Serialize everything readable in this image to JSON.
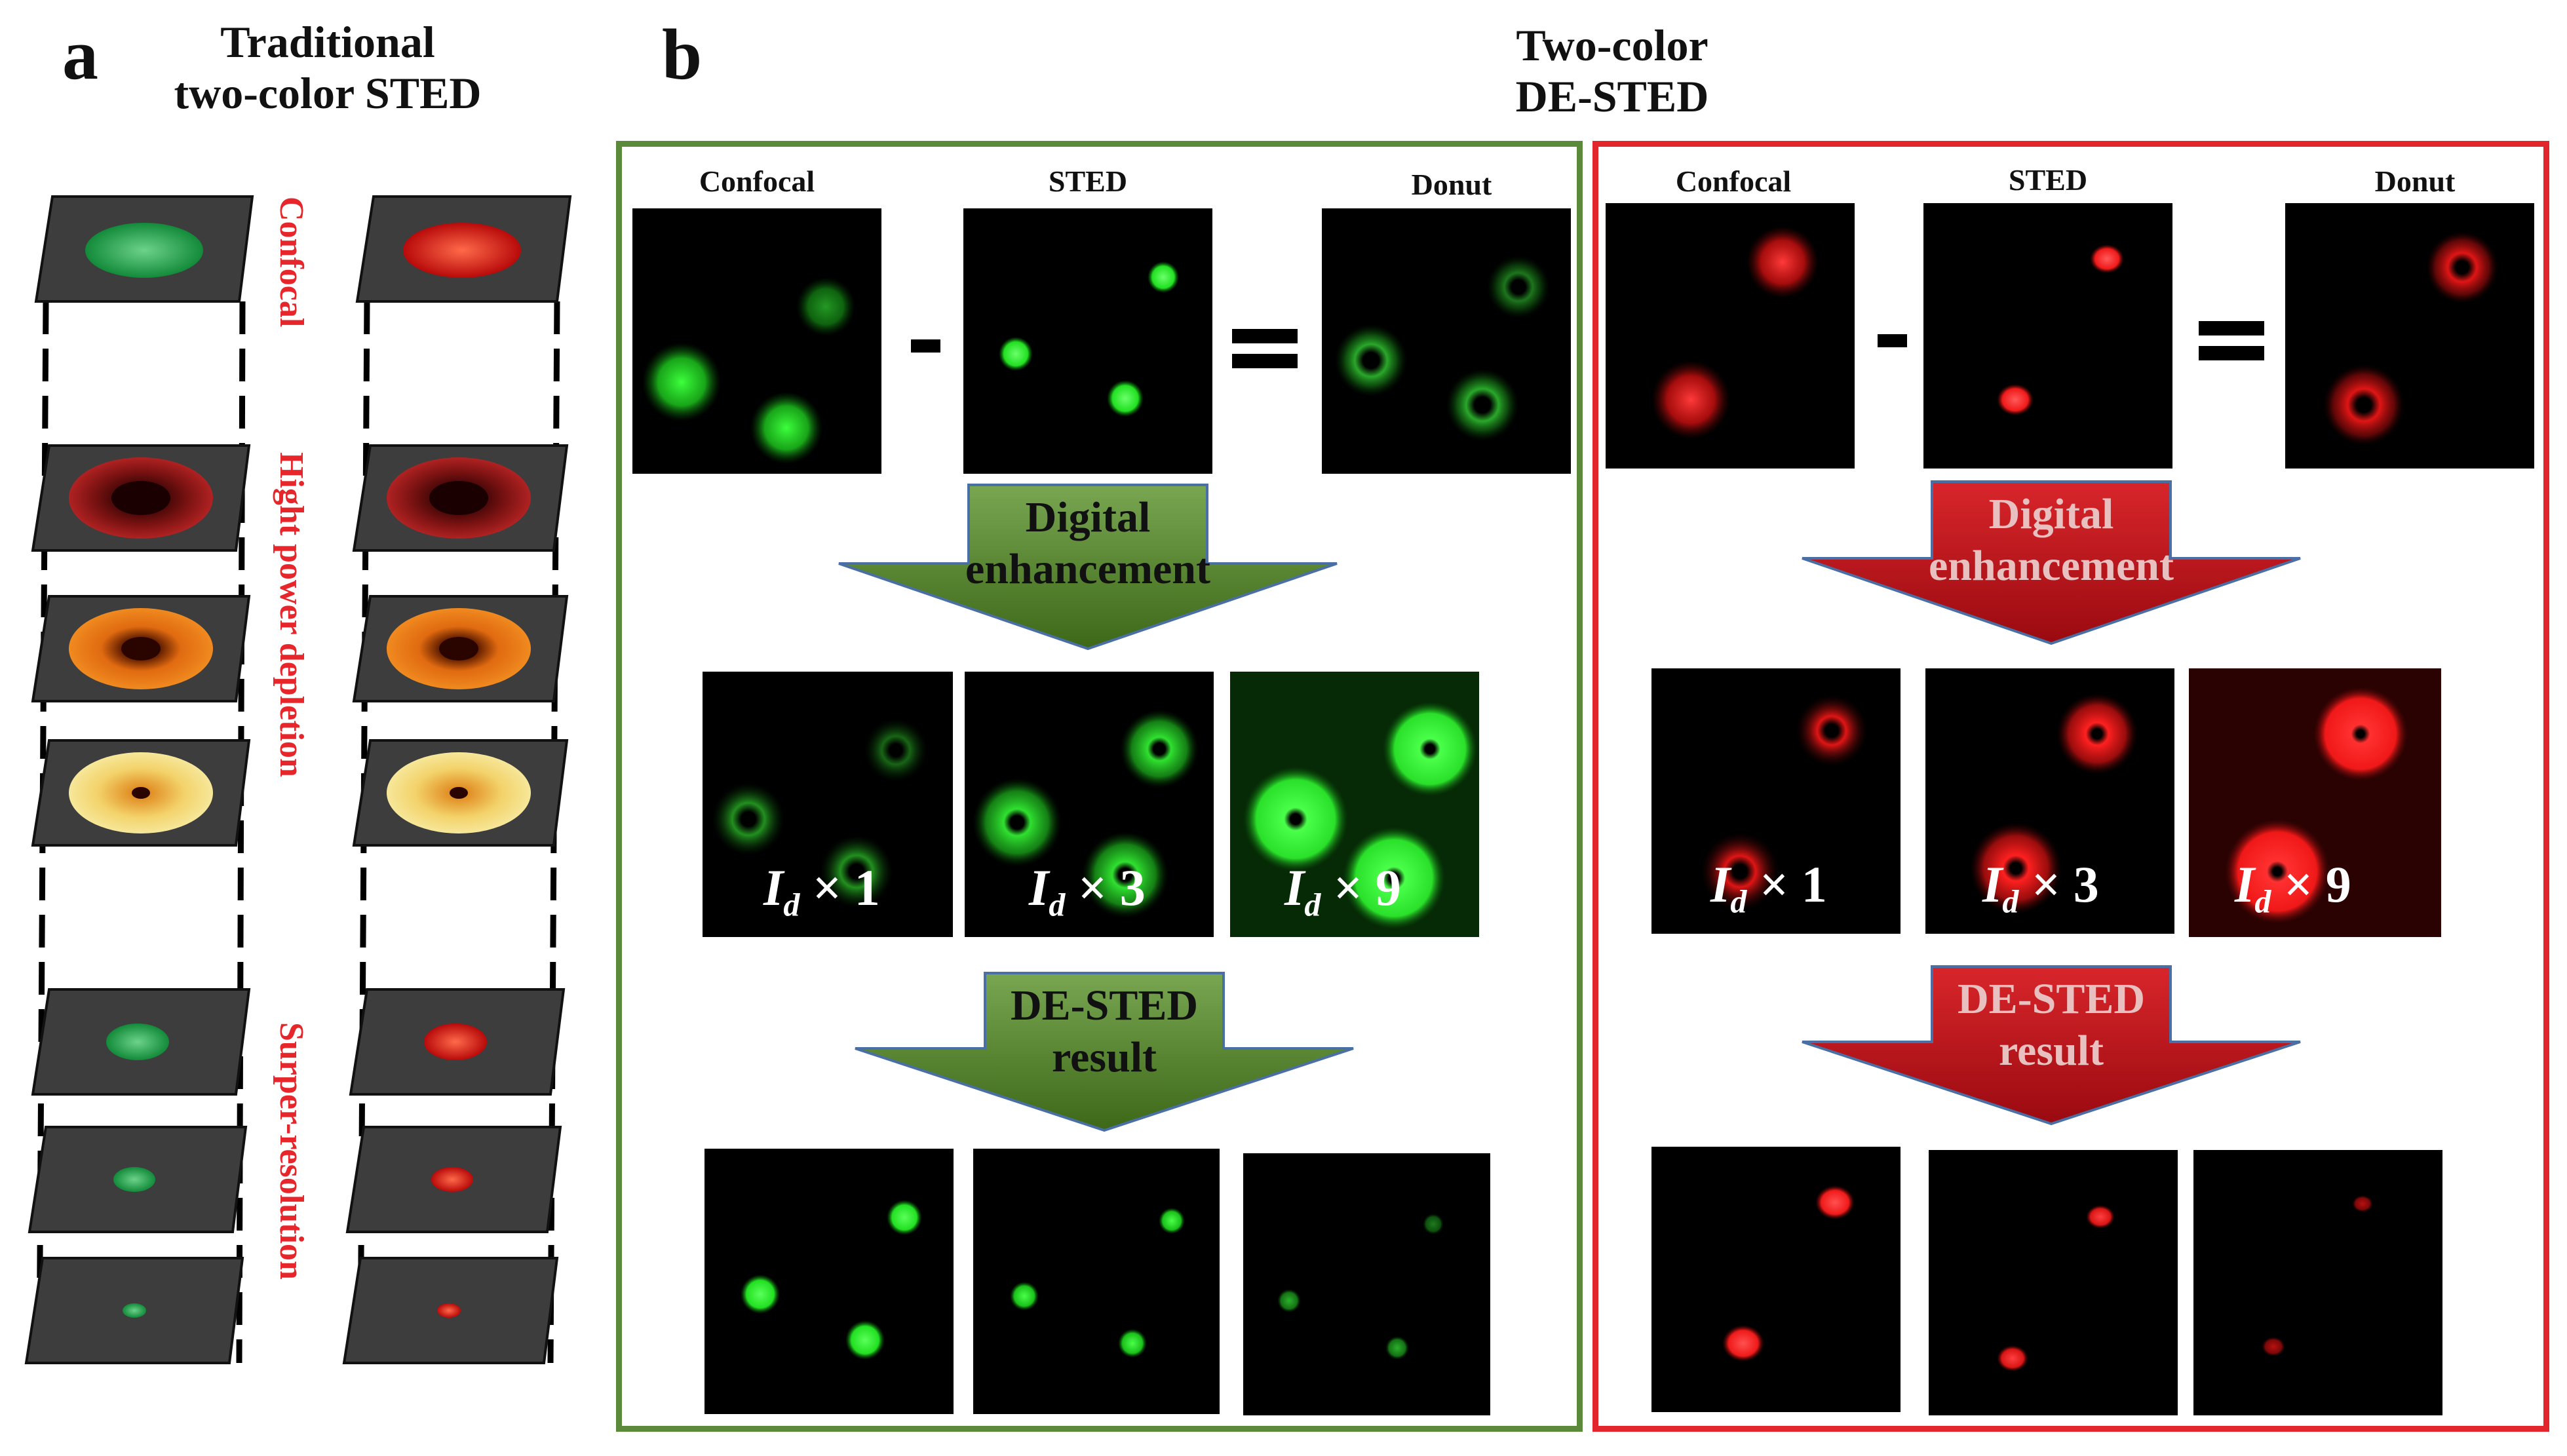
{
  "panel_a": {
    "letter": "a",
    "title_line1": "Traditional",
    "title_line2": "two-color STED",
    "labels": [
      "Confocal",
      "Hight power depletion",
      "Surper-resolution"
    ]
  },
  "panel_b": {
    "letter": "b",
    "title_line1": "Two-color",
    "title_line2": "DE-STED",
    "columns": [
      "Confocal",
      "STED",
      "Donut"
    ],
    "minus": "-",
    "equals": "=",
    "arrow1_line1": "Digital",
    "arrow1_line2": "enhancement",
    "arrow2_line1": "DE-STED",
    "arrow2_line2": "result",
    "id_var": "I",
    "id_sub": "d",
    "multipliers": [
      "× 1",
      "× 3",
      "× 9"
    ]
  },
  "colors": {
    "green_frame": "#5a8a3a",
    "red_frame": "#e3262b",
    "green_arrow": "#4f7a26",
    "red_arrow": "#b8141b",
    "label_red": "#e6262b"
  }
}
